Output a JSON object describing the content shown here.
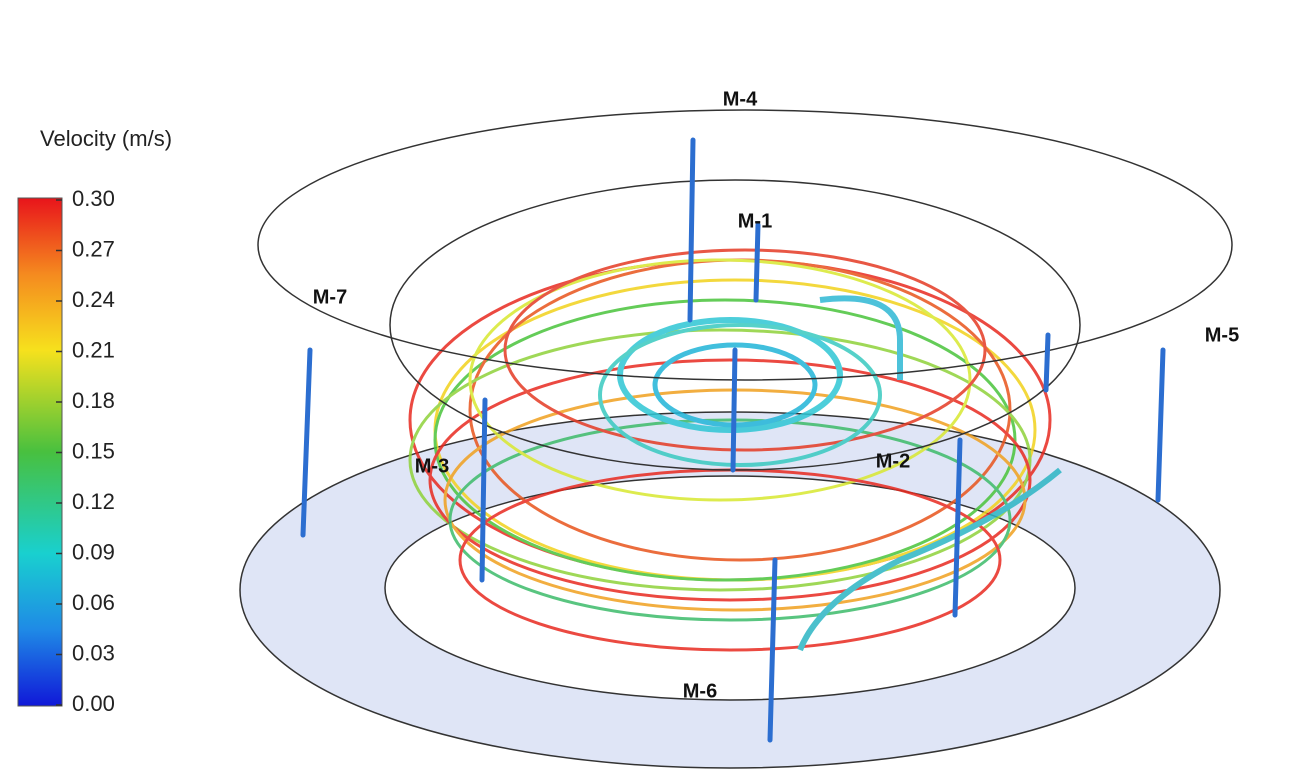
{
  "legend": {
    "title": "Velocity (m/s)",
    "ticks": [
      {
        "value": 0.3,
        "label": "0.30"
      },
      {
        "value": 0.27,
        "label": "0.27"
      },
      {
        "value": 0.24,
        "label": "0.24"
      },
      {
        "value": 0.21,
        "label": "0.21"
      },
      {
        "value": 0.18,
        "label": "0.18"
      },
      {
        "value": 0.15,
        "label": "0.15"
      },
      {
        "value": 0.12,
        "label": "0.12"
      },
      {
        "value": 0.09,
        "label": "0.09"
      },
      {
        "value": 0.06,
        "label": "0.06"
      },
      {
        "value": 0.03,
        "label": "0.03"
      },
      {
        "value": 0,
        "label": "0.00"
      }
    ]
  },
  "labels": [
    "M-1",
    "M-2",
    "M-3",
    "M-4",
    "M-5",
    "M-6",
    "M-7"
  ]
}
